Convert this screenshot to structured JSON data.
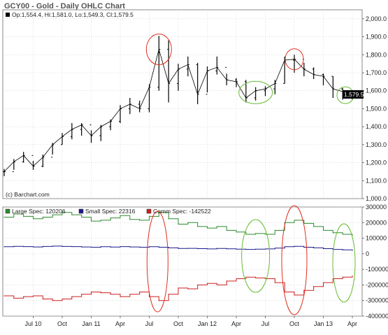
{
  "title": "GCY00 - Gold - Daily OHLC Chart",
  "chart_data": [
    {
      "type": "ohlc",
      "info_line": "Op:1,554.4, Hi:1,581.0, Lo:1,549.3, Cl:1,579.5",
      "last_price_label": "1,579.5",
      "last_price": 1579.5,
      "credit": "(c) Barchart.com",
      "ylim": [
        1000,
        2050
      ],
      "yticks": [
        {
          "value": 1000,
          "label": "1,000.0"
        },
        {
          "value": 1100,
          "label": "1,100.0"
        },
        {
          "value": 1200,
          "label": "1,200.0"
        },
        {
          "value": 1300,
          "label": "1,300.0"
        },
        {
          "value": 1400,
          "label": "1,400.0"
        },
        {
          "value": 1500,
          "label": "1,500.0"
        },
        {
          "value": 1600,
          "label": "1,600.0"
        },
        {
          "value": 1700,
          "label": "1,700.0"
        },
        {
          "value": 1800,
          "label": "1,800.0"
        },
        {
          "value": 1900,
          "label": "1,900.0"
        },
        {
          "value": 2000,
          "label": "2,000.0"
        }
      ],
      "x_dates": [
        "2010-04",
        "2010-05",
        "2010-06",
        "2010-07",
        "2010-08",
        "2010-09",
        "2010-10",
        "2010-11",
        "2010-12",
        "2011-01",
        "2011-02",
        "2011-03",
        "2011-04",
        "2011-05",
        "2011-06",
        "2011-07",
        "2011-08",
        "2011-09",
        "2011-10",
        "2011-11",
        "2011-12",
        "2012-01",
        "2012-02",
        "2012-03",
        "2012-04",
        "2012-05",
        "2012-06",
        "2012-07",
        "2012-08",
        "2012-09",
        "2012-10",
        "2012-11",
        "2012-12",
        "2013-01",
        "2013-02",
        "2013-03",
        "2013-04"
      ],
      "close": [
        1150,
        1205,
        1240,
        1180,
        1230,
        1300,
        1345,
        1385,
        1410,
        1350,
        1400,
        1430,
        1500,
        1525,
        1500,
        1620,
        1830,
        1640,
        1720,
        1745,
        1580,
        1710,
        1730,
        1660,
        1650,
        1560,
        1600,
        1610,
        1640,
        1770,
        1775,
        1720,
        1690,
        1680,
        1610,
        1595,
        1579.5
      ],
      "high": [
        1165,
        1220,
        1260,
        1210,
        1245,
        1310,
        1365,
        1420,
        1420,
        1380,
        1410,
        1440,
        1520,
        1560,
        1545,
        1635,
        1905,
        1880,
        1750,
        1790,
        1755,
        1735,
        1790,
        1695,
        1670,
        1660,
        1620,
        1625,
        1660,
        1790,
        1800,
        1755,
        1730,
        1695,
        1680,
        1615,
        1581
      ],
      "low": [
        1125,
        1160,
        1200,
        1160,
        1175,
        1245,
        1300,
        1330,
        1350,
        1310,
        1320,
        1380,
        1420,
        1470,
        1480,
        1480,
        1600,
        1535,
        1600,
        1680,
        1525,
        1590,
        1690,
        1630,
        1620,
        1535,
        1545,
        1570,
        1580,
        1640,
        1700,
        1680,
        1665,
        1630,
        1560,
        1550,
        1549.3
      ]
    },
    {
      "type": "line",
      "legend": [
        {
          "name": "Large Spec: 120206",
          "color": "#2e8b2e"
        },
        {
          "name": "Small Spec: 22316",
          "color": "#1a1a8c"
        },
        {
          "name": "Comm Spec: -142522",
          "color": "#cc2020"
        }
      ],
      "ylim": [
        -400000,
        300000
      ],
      "yticks": [
        {
          "value": 300000,
          "label": "300000"
        },
        {
          "value": 200000,
          "label": "200000"
        },
        {
          "value": 100000,
          "label": "100000"
        },
        {
          "value": 0,
          "label": "0"
        },
        {
          "value": -100000,
          "label": "-100000"
        },
        {
          "value": -200000,
          "label": "-200000"
        },
        {
          "value": -300000,
          "label": "-300000"
        },
        {
          "value": -400000,
          "label": "-400000"
        }
      ],
      "x_dates": [
        "2010-04",
        "2010-05",
        "2010-06",
        "2010-07",
        "2010-08",
        "2010-09",
        "2010-10",
        "2010-11",
        "2010-12",
        "2011-01",
        "2011-02",
        "2011-03",
        "2011-04",
        "2011-05",
        "2011-06",
        "2011-07",
        "2011-08",
        "2011-09",
        "2011-10",
        "2011-11",
        "2011-12",
        "2012-01",
        "2012-02",
        "2012-03",
        "2012-04",
        "2012-05",
        "2012-06",
        "2012-07",
        "2012-08",
        "2012-09",
        "2012-10",
        "2012-11",
        "2012-12",
        "2013-01",
        "2013-02",
        "2013-03",
        "2013-04"
      ],
      "series": [
        {
          "name": "Large Spec",
          "color": "#2e8b2e",
          "values": [
            235000,
            255000,
            240000,
            225000,
            235000,
            250000,
            265000,
            250000,
            235000,
            210000,
            215000,
            230000,
            245000,
            220000,
            215000,
            240000,
            265000,
            225000,
            190000,
            200000,
            175000,
            165000,
            175000,
            150000,
            140000,
            125000,
            130000,
            125000,
            150000,
            200000,
            215000,
            195000,
            175000,
            150000,
            135000,
            125000,
            120206
          ]
        },
        {
          "name": "Small Spec",
          "color": "#1a1a8c",
          "values": [
            45000,
            48000,
            46000,
            44000,
            47000,
            49000,
            47000,
            46000,
            44000,
            42000,
            45000,
            43000,
            46000,
            44000,
            42000,
            45000,
            42000,
            38000,
            34000,
            35000,
            33000,
            31000,
            34000,
            32000,
            30000,
            28000,
            30000,
            31000,
            36000,
            45000,
            48000,
            42000,
            38000,
            33000,
            28000,
            25000,
            22316
          ]
        },
        {
          "name": "Comm Spec",
          "color": "#cc2020",
          "values": [
            -270000,
            -285000,
            -275000,
            -270000,
            -290000,
            -300000,
            -290000,
            -275000,
            -260000,
            -245000,
            -250000,
            -260000,
            -275000,
            -260000,
            -245000,
            -275000,
            -300000,
            -260000,
            -220000,
            -225000,
            -200000,
            -190000,
            -200000,
            -175000,
            -160000,
            -150000,
            -155000,
            -160000,
            -185000,
            -245000,
            -265000,
            -235000,
            -210000,
            -185000,
            -160000,
            -150000,
            -142522
          ]
        }
      ]
    }
  ],
  "x_axis": {
    "ticks": [
      {
        "date": "2010-07",
        "label": "Jul 10"
      },
      {
        "date": "2010-10",
        "label": "Oct"
      },
      {
        "date": "2011-01",
        "label": "Jan 11"
      },
      {
        "date": "2011-04",
        "label": "Apr"
      },
      {
        "date": "2011-07",
        "label": "Jul"
      },
      {
        "date": "2011-10",
        "label": "Oct"
      },
      {
        "date": "2012-01",
        "label": "Jan 12"
      },
      {
        "date": "2012-04",
        "label": "Apr"
      },
      {
        "date": "2012-07",
        "label": "Jul"
      },
      {
        "date": "2012-10",
        "label": "Oct"
      },
      {
        "date": "2013-01",
        "label": "Jan 13"
      },
      {
        "date": "2013-04",
        "label": "Apr"
      }
    ]
  },
  "colors": {
    "price_bars": "#000000",
    "grid": "#cccccc",
    "red_annotation": "#e03020",
    "green_annotation": "#66bb33"
  }
}
